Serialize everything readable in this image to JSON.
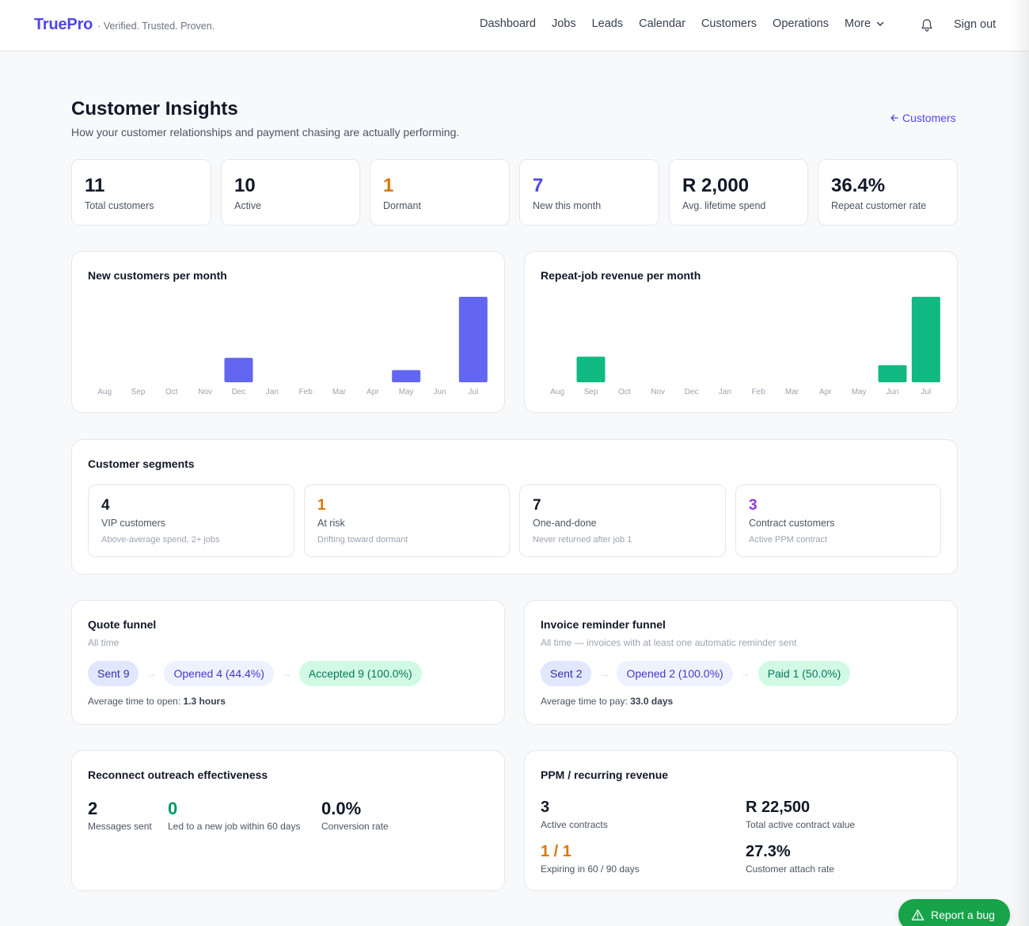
{
  "brand": {
    "name": "TruePro",
    "tagline": "· Verified. Trusted. Proven."
  },
  "nav": {
    "items": [
      "Dashboard",
      "Jobs",
      "Leads",
      "Calendar",
      "Customers",
      "Operations"
    ],
    "more_label": "More",
    "signout_label": "Sign out"
  },
  "header": {
    "title": "Customer Insights",
    "subtitle": "How your customer relationships and payment chasing are actually performing.",
    "back_link": "Customers"
  },
  "stats": [
    {
      "value": "11",
      "label": "Total customers",
      "color": "#111827"
    },
    {
      "value": "10",
      "label": "Active",
      "color": "#111827"
    },
    {
      "value": "1",
      "label": "Dormant",
      "color": "#d97706"
    },
    {
      "value": "7",
      "label": "New this month",
      "color": "#4f46e5"
    },
    {
      "value": "R 2,000",
      "label": "Avg. lifetime spend",
      "color": "#111827"
    },
    {
      "value": "36.4%",
      "label": "Repeat customer rate",
      "color": "#111827"
    }
  ],
  "chart_data": [
    {
      "type": "bar",
      "title": "New customers per month",
      "categories": [
        "Aug",
        "Sep",
        "Oct",
        "Nov",
        "Dec",
        "Jan",
        "Feb",
        "Mar",
        "Apr",
        "May",
        "Jun",
        "Jul"
      ],
      "values": [
        0,
        0,
        0,
        0,
        2,
        0,
        0,
        0,
        0,
        1,
        0,
        7
      ],
      "color": "#6366f1",
      "grid": false
    },
    {
      "type": "bar",
      "title": "Repeat-job revenue per month",
      "categories": [
        "Aug",
        "Sep",
        "Oct",
        "Nov",
        "Dec",
        "Jan",
        "Feb",
        "Mar",
        "Apr",
        "May",
        "Jun",
        "Jul"
      ],
      "values": [
        0,
        300,
        0,
        0,
        0,
        0,
        0,
        0,
        0,
        0,
        200,
        1000
      ],
      "color": "#10b981",
      "grid": false
    }
  ],
  "segments": {
    "title": "Customer segments",
    "items": [
      {
        "value": "4",
        "label": "VIP customers",
        "desc": "Above-average spend, 2+ jobs",
        "color": "#111827"
      },
      {
        "value": "1",
        "label": "At risk",
        "desc": "Drifting toward dormant",
        "color": "#d97706"
      },
      {
        "value": "7",
        "label": "One-and-done",
        "desc": "Never returned after job 1",
        "color": "#111827"
      },
      {
        "value": "3",
        "label": "Contract customers",
        "desc": "Active PPM contract",
        "color": "#9333ea"
      }
    ]
  },
  "quote_funnel": {
    "title": "Quote funnel",
    "subtitle": "All time",
    "steps": [
      "Sent 9",
      "Opened 4 (44.4%)",
      "Accepted 9 (100.0%)"
    ],
    "note_label": "Average time to open:",
    "note_value": "1.3 hours"
  },
  "invoice_funnel": {
    "title": "Invoice reminder funnel",
    "subtitle": "All time — invoices with at least one automatic reminder sent",
    "steps": [
      "Sent 2",
      "Opened 2 (100.0%)",
      "Paid 1 (50.0%)"
    ],
    "note_label": "Average time to pay:",
    "note_value": "33.0 days"
  },
  "reconnect": {
    "title": "Reconnect outreach effectiveness",
    "metrics": [
      {
        "value": "2",
        "label": "Messages sent",
        "color": "#111827"
      },
      {
        "value": "0",
        "label": "Led to a new job within 60 days",
        "color": "#059669"
      },
      {
        "value": "0.0%",
        "label": "Conversion rate",
        "color": "#111827"
      }
    ]
  },
  "ppm": {
    "title": "PPM / recurring revenue",
    "metrics": [
      {
        "value": "3",
        "label": "Active contracts",
        "color": "#111827"
      },
      {
        "value": "R 22,500",
        "label": "Total active contract value",
        "color": "#111827"
      },
      {
        "value": "1 / 1",
        "label": "Expiring in 60 / 90 days",
        "color": "#d97706"
      },
      {
        "value": "27.3%",
        "label": "Customer attach rate",
        "color": "#111827"
      }
    ]
  },
  "bug_button": {
    "label": "Report a bug"
  },
  "colors": {
    "brand": "#4f46e5",
    "success": "#16a34a",
    "warning": "#d97706"
  }
}
